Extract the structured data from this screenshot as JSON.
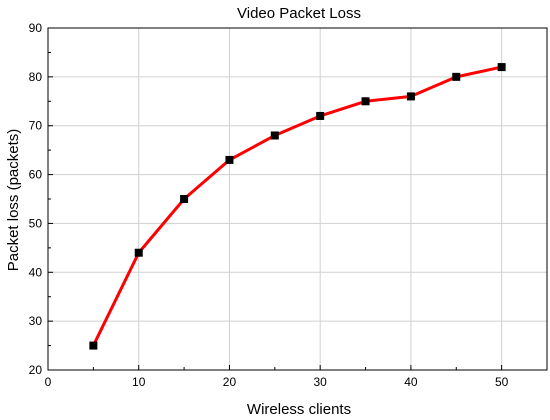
{
  "chart_data": {
    "type": "line",
    "title": "Video Packet Loss",
    "xlabel": "Wireless clients",
    "ylabel": "Packet loss (packets)",
    "xlim": [
      0,
      55
    ],
    "ylim": [
      20,
      90
    ],
    "xticks": [
      0,
      10,
      20,
      30,
      40,
      50
    ],
    "yticks": [
      20,
      30,
      40,
      50,
      60,
      70,
      80,
      90
    ],
    "grid": true,
    "series": [
      {
        "x": [
          5,
          10,
          15,
          20,
          25,
          30,
          35,
          40,
          45,
          50
        ],
        "y": [
          25,
          44,
          55,
          63,
          68,
          72,
          75,
          76,
          80,
          82
        ],
        "line_color": "#ff0000",
        "marker": "square",
        "marker_color": "#000000"
      }
    ]
  }
}
